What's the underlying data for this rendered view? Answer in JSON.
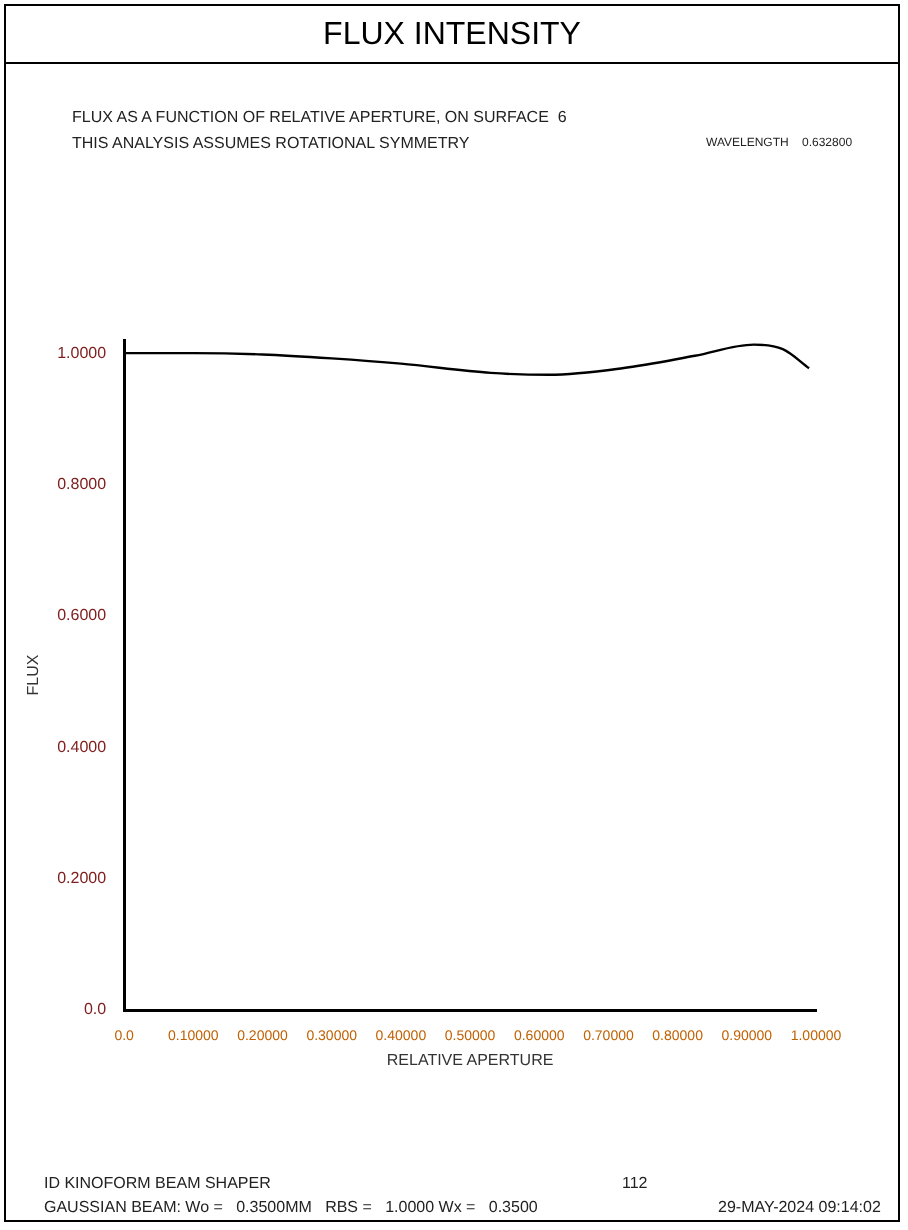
{
  "chart_data": {
    "type": "line",
    "title": "FLUX INTENSITY",
    "subtitle": "FLUX AS A FUNCTION OF RELATIVE APERTURE, ON SURFACE  6",
    "xlabel": "RELATIVE APERTURE",
    "ylabel": "FLUX",
    "annotations": [
      "THIS ANALYSIS ASSUMES ROTATIONAL SYMMETRY",
      "WAVELENGTH    0.632800",
      "ID KINOFORM BEAM SHAPER",
      "112",
      "GAUSSIAN BEAM: Wo =   0.3500MM   RBS =   1.0000 Wx =   0.3500",
      "29-MAY-2024 09:14:02"
    ],
    "series": [
      {
        "color": "#000000",
        "x": [
          0,
          0.1,
          0.2,
          0.3,
          0.4,
          0.53,
          0.614,
          0.72,
          0.825,
          0.91,
          0.952,
          0.99
        ],
        "values": [
          1.0,
          1.0,
          0.998,
          0.992,
          0.984,
          0.97,
          0.967,
          0.977,
          0.996,
          1.013,
          1.006,
          0.977
        ]
      }
    ],
    "xlim": [
      0,
      1
    ],
    "xticks": [
      {
        "value": 0,
        "label": "0.0"
      },
      {
        "value": 0.1,
        "label": "0.10000"
      },
      {
        "value": 0.2,
        "label": "0.20000"
      },
      {
        "value": 0.3,
        "label": "0.30000"
      },
      {
        "value": 0.4,
        "label": "0.40000"
      },
      {
        "value": 0.5,
        "label": "0.50000"
      },
      {
        "value": 0.6,
        "label": "0.60000"
      },
      {
        "value": 0.7,
        "label": "0.70000"
      },
      {
        "value": 0.8,
        "label": "0.80000"
      },
      {
        "value": 0.9,
        "label": "0.90000"
      },
      {
        "value": 1,
        "label": "1.00000"
      }
    ],
    "ylim": [
      0,
      1.02
    ],
    "yticks": [
      {
        "value": 0,
        "label": "0.0"
      },
      {
        "value": 0.2,
        "label": "0.2000"
      },
      {
        "value": 0.4,
        "label": "0.4000"
      },
      {
        "value": 0.6,
        "label": "0.6000"
      },
      {
        "value": 0.8,
        "label": "0.8000"
      },
      {
        "value": 1,
        "label": "1.0000"
      }
    ],
    "grid": false,
    "legend": false,
    "marker": "none",
    "line_style": "solid"
  }
}
